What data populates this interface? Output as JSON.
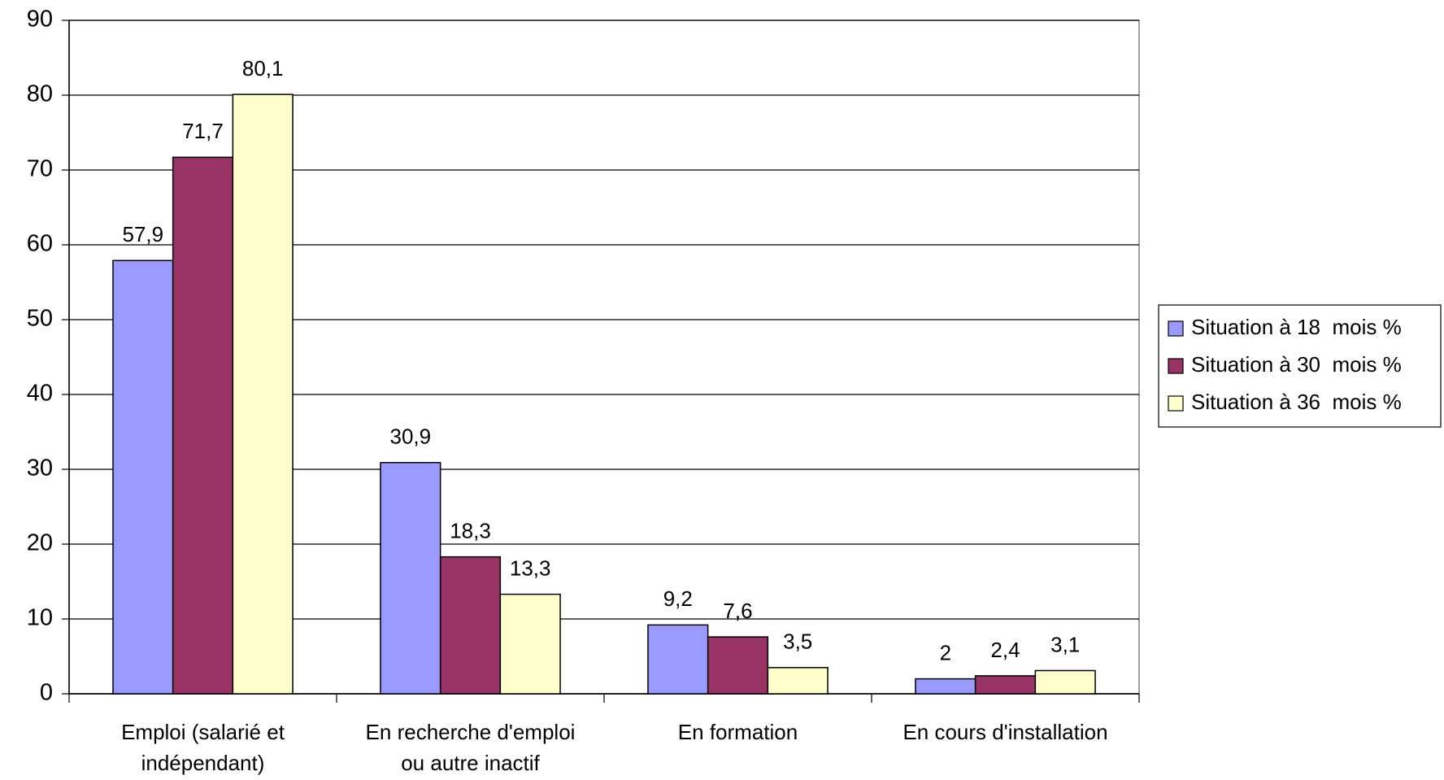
{
  "chart_data": {
    "type": "bar",
    "categories": [
      [
        "Emploi (salarié et",
        "indépendant)"
      ],
      [
        "En recherche d'emploi",
        "ou autre inactif"
      ],
      [
        "En formation"
      ],
      [
        "En cours d'installation"
      ]
    ],
    "series": [
      {
        "name": "Situation à 18  mois %",
        "color": "#9999ff",
        "values": [
          57.9,
          30.9,
          9.2,
          2
        ],
        "value_labels": [
          "57,9",
          "30,9",
          "9,2",
          "2"
        ]
      },
      {
        "name": "Situation à 30  mois %",
        "color": "#993366",
        "values": [
          71.7,
          18.3,
          7.6,
          2.4
        ],
        "value_labels": [
          "71,7",
          "18,3",
          "7,6",
          "2,4"
        ]
      },
      {
        "name": "Situation à 36  mois %",
        "color": "#ffffcc",
        "values": [
          80.1,
          13.3,
          3.5,
          3.1
        ],
        "value_labels": [
          "80,1",
          "13,3",
          "3,5",
          "3,1"
        ]
      }
    ],
    "ylim": [
      0,
      90
    ],
    "yticks": [
      0,
      10,
      20,
      30,
      40,
      50,
      60,
      70,
      80,
      90
    ],
    "grid": true,
    "legend": "right"
  }
}
